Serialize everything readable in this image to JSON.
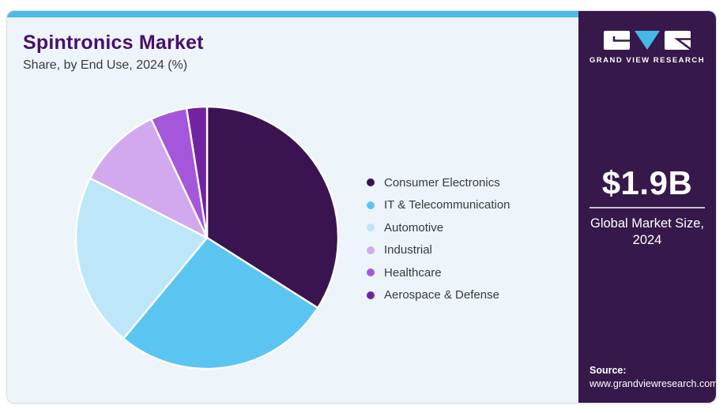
{
  "header": {
    "title": "Spintronics Market",
    "subtitle": "Share, by End Use, 2024 (%)"
  },
  "chart_data": {
    "type": "pie",
    "title": "Spintronics Market Share, by End Use, 2024 (%)",
    "categories": [
      "Consumer Electronics",
      "IT & Telecommunication",
      "Automotive",
      "Industrial",
      "Healthcare",
      "Aerospace & Defense"
    ],
    "values": [
      34,
      27,
      21.5,
      10.5,
      4.5,
      2.5
    ],
    "unit": "%",
    "colors": [
      "#3A1450",
      "#5BC5F2",
      "#BDE7F9",
      "#D2A9EE",
      "#A557DB",
      "#7223A3"
    ],
    "start_angle_deg": 0,
    "direction": "clockwise",
    "legend_position": "right",
    "slice_border_color": "#FFFFFF"
  },
  "sidebar": {
    "brand": "GRAND VIEW RESEARCH",
    "market_size": {
      "value": "$1.9B",
      "label": "Global Market Size, 2024"
    },
    "source": {
      "label": "Source:",
      "url": "www.grandviewresearch.com"
    }
  },
  "theme": {
    "top_bar": "#4CB9E9",
    "card_bg": "#EDF5FA",
    "card_border": "#D9DFE5",
    "sidebar_bg": "#37184A",
    "title": "#4A0F6A",
    "text": "#3A3A3A",
    "logo_triangle": "#45B8E8",
    "stat_divider": "#C9C2D4"
  }
}
